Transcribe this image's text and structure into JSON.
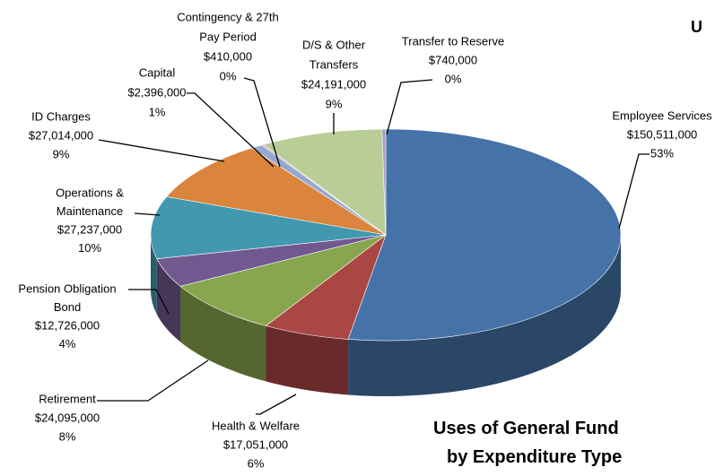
{
  "chart_data": {
    "type": "pie",
    "title_lines": [
      "Uses of General Fund",
      "by Expenditure Type"
    ],
    "annotations": [
      "U"
    ],
    "categories": [
      [
        "Employee Services"
      ],
      [
        "Health & Welfare"
      ],
      [
        "Retirement"
      ],
      [
        "Pension Obligation",
        "Bond"
      ],
      [
        "Operations &",
        "Maintenance"
      ],
      [
        "ID Charges"
      ],
      [
        "Capital"
      ],
      [
        "Contingency & 27th",
        "Pay Period"
      ],
      [
        "D/S & Other",
        "Transfers"
      ],
      [
        "Transfer to Reserve"
      ]
    ],
    "values": [
      150511000,
      17051000,
      24095000,
      12726000,
      27237000,
      27014000,
      2396000,
      410000,
      24191000,
      740000
    ],
    "value_labels": [
      "$150,511,000",
      "$17,051,000",
      "$24,095,000",
      "$12,726,000",
      "$27,237,000",
      "$27,014,000",
      "$2,396,000",
      "$410,000",
      "$24,191,000",
      "$740,000"
    ],
    "percent_labels": [
      "53%",
      "6%",
      "8%",
      "4%",
      "10%",
      "9%",
      "1%",
      "0%",
      "9%",
      "0%"
    ],
    "colors": [
      "#4572a7",
      "#aa4643",
      "#89a54e",
      "#71588f",
      "#4198af",
      "#db843d",
      "#93a9cf",
      "#c9a0a0",
      "#b9cd96",
      "#a99bbd"
    ]
  }
}
